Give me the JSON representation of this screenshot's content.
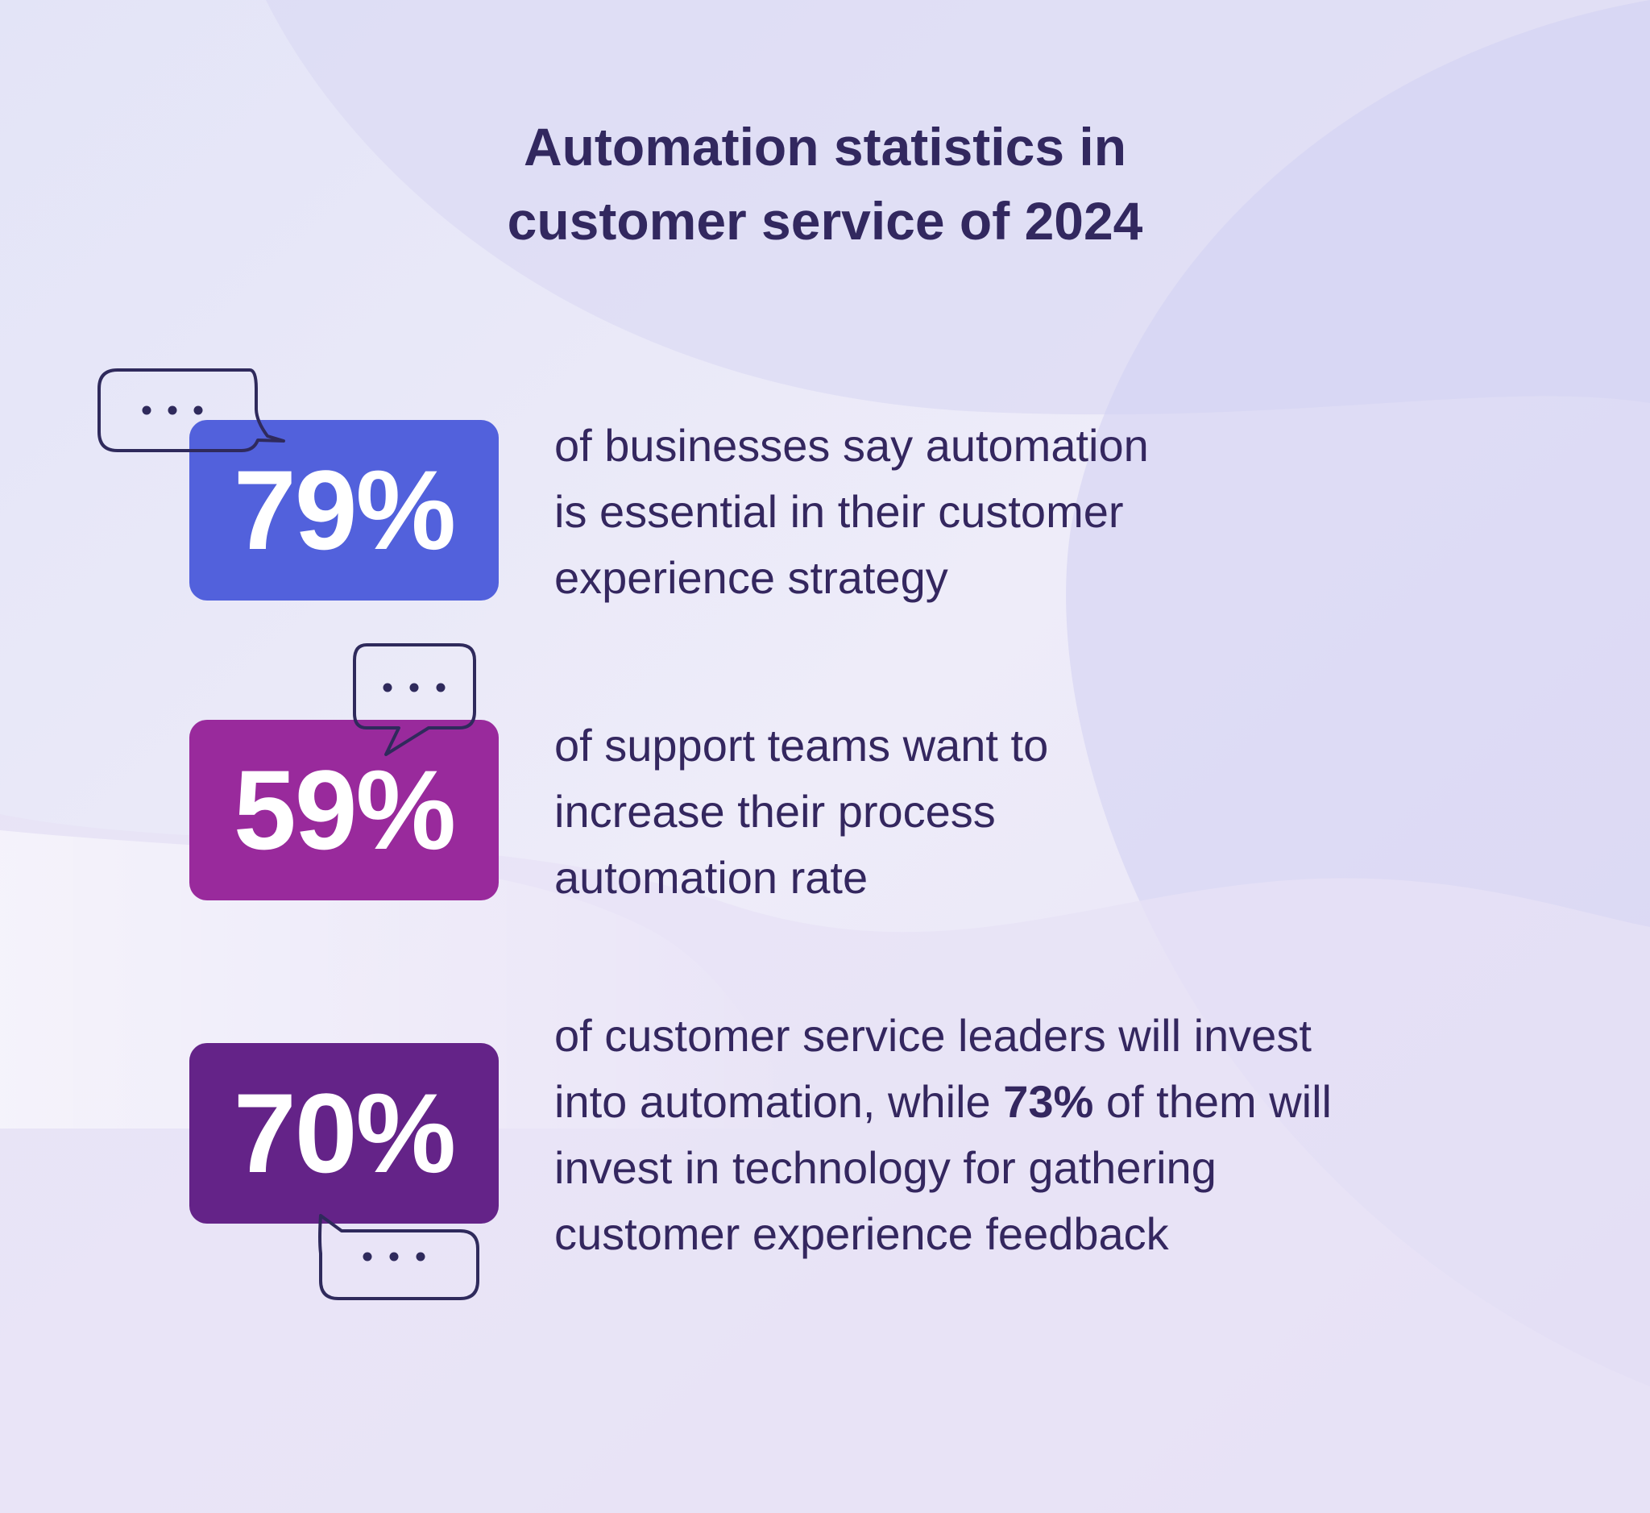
{
  "title": {
    "line1": "Automation statistics in",
    "line2": "customer service of 2024"
  },
  "colors": {
    "title": "#32285f",
    "text": "#34275f",
    "stat1": "#5261dc",
    "stat2": "#992a9c",
    "stat3": "#642388",
    "bubble_stroke": "#2f2a5c"
  },
  "stats": [
    {
      "value": "79%",
      "lines": [
        "of businesses say automation",
        "is essential in their customer",
        "experience strategy"
      ]
    },
    {
      "value": "59%",
      "lines": [
        "of support teams want to",
        "increase their process",
        "automation rate"
      ]
    },
    {
      "value": "70%",
      "line1": "of customer service leaders will invest",
      "line2_before": "into automation, while ",
      "line2_bold": "73%",
      "line2_after": " of them will",
      "line3": "invest in technology for gathering",
      "line4": "customer experience feedback"
    }
  ],
  "icons": [
    "speech-bubble-icon",
    "speech-bubble-icon",
    "speech-bubble-icon"
  ]
}
